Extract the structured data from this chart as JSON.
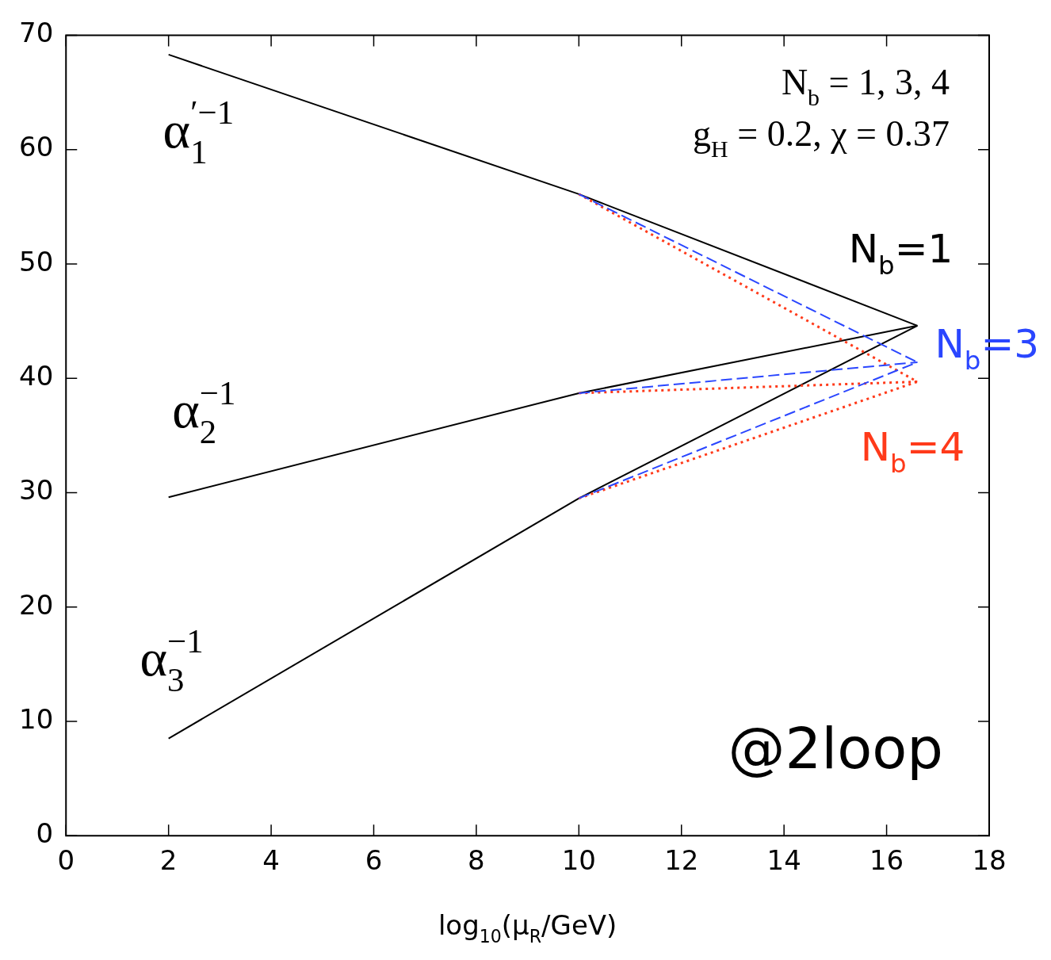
{
  "chart_data": {
    "type": "line",
    "xlabel": "log$_{10}$(μ$_{R}$/GeV)",
    "xlim": [
      0,
      18
    ],
    "xticks": [
      0,
      2,
      4,
      6,
      8,
      10,
      12,
      14,
      16,
      18
    ],
    "ylim": [
      0,
      70
    ],
    "yticks": [
      0,
      10,
      20,
      30,
      40,
      50,
      60,
      70
    ],
    "grid": false,
    "marker": "none",
    "series": [
      {
        "name": "N$_{b}$=1",
        "color": "#000000",
        "line_style": "solid",
        "x": [
          2,
          10,
          16.6
        ],
        "values": [
          68.3,
          56.1,
          44.6
        ]
      },
      {
        "color": "#000000",
        "line_style": "solid",
        "x": [
          2,
          10,
          16.6
        ],
        "values": [
          29.6,
          38.7,
          44.6
        ]
      },
      {
        "color": "#000000",
        "line_style": "solid",
        "x": [
          2,
          10,
          16.6
        ],
        "values": [
          8.5,
          29.5,
          44.6
        ]
      },
      {
        "name": "N$_{b}$=3",
        "color": "#2a46ff",
        "line_style": "dashed",
        "x": [
          10,
          16.6
        ],
        "values": [
          56.1,
          41.4
        ]
      },
      {
        "color": "#2a46ff",
        "line_style": "dashed",
        "x": [
          10,
          16.6
        ],
        "values": [
          38.7,
          41.4
        ]
      },
      {
        "color": "#2a46ff",
        "line_style": "dashed",
        "x": [
          10,
          16.6
        ],
        "values": [
          29.5,
          41.4
        ]
      },
      {
        "name": "N$_{b}$=4",
        "color": "#ff3a1a",
        "line_style": "dotted",
        "x": [
          10,
          16.6
        ],
        "values": [
          56.1,
          39.7
        ]
      },
      {
        "color": "#ff3a1a",
        "line_style": "dotted",
        "x": [
          10,
          16.6
        ],
        "values": [
          38.7,
          39.7
        ]
      },
      {
        "color": "#ff3a1a",
        "line_style": "dotted",
        "x": [
          10,
          16.6
        ],
        "values": [
          29.5,
          39.7
        ]
      }
    ],
    "annotations": [
      "α$_{1}$$^{′−1}$",
      "α$_{2}$$^{−1}$",
      "α$_{3}$$^{−1}$",
      "N$_{b}$ = 1, 3, 4",
      "g$_{H}$ = 0.2, χ = 0.37",
      "@2loop"
    ]
  }
}
